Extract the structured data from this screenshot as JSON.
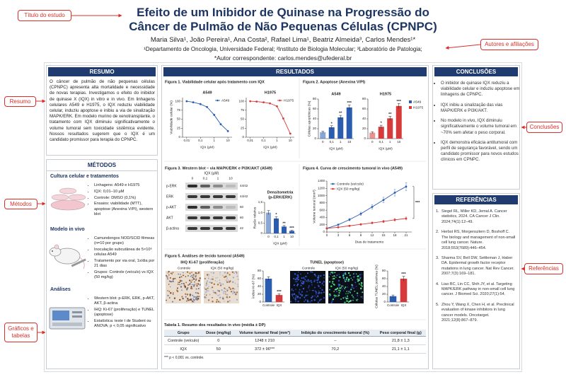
{
  "callouts": [
    "Título do estudo",
    "Resumo",
    "Métodos",
    "Gráficos e tabelas",
    "Autores e afiliações",
    "Conclusões",
    "Referências"
  ],
  "header": {
    "title_line1": "Efeito de um Inibidor de Quinase na Progressão do",
    "title_line2": "Câncer de Pulmão de Não Pequenas Células (CPNPC)",
    "authors": "Maria Silva¹, João Pereira¹, Ana Costa², Rafael Lima¹, Beatriz Almeida³, Carlos Mendes¹*",
    "affiliations": "¹Departamento de Oncologia, Universidade Federal; ²Instituto de Biologia Molecular; ³Laboratório de Patologia;",
    "corresponding": "*Autor correspondente: carlos.mendes@ufederal.br"
  },
  "resumo": {
    "heading": "RESUMO",
    "text": "O câncer de pulmão de não pequenas células (CPNPC) apresenta alta mortalidade e necessidade de novas terapias. Investigamos o efeito do inibidor de quinase X (IQX) in vitro e in vivo. Em linhagens celulares A549 e H1975, o IQX reduziu viabilidade celular, induziu apoptose e inibiu a via de sinalização MAPK/ERK. Em modelo murino de xenotransplante, o tratamento com IQX diminuiu significativamente o volume tumoral sem toxicidade sistêmica evidente. Nossos resultados sugerem que o IQX é um candidato promissor para terapia do CPNPC."
  },
  "metodos": {
    "heading": "MÉTODOS",
    "sections": [
      {
        "title": "Cultura celular e tratamentos",
        "items": [
          "Linhagens: A549 e H1975",
          "IQX: 0,01–10 µM",
          "Controle: DMSO (0,1%)",
          "Ensaios: viabilidade (MTT), apoptose (Anexina V/PI), western blot"
        ]
      },
      {
        "title": "Modelo in vivo",
        "items": [
          "Camundongos NOD/SCID fêmeas (n=10 por grupo)",
          "Inoculação subcutânea de 5×10⁶ células A549",
          "Tratamento por via oral, 1x/dia por 21 dias",
          "Grupos: Controle (veículo) vs IQX (50 mg/kg)"
        ]
      },
      {
        "title": "Análises",
        "items": [
          "Western blot: p-ERK, ERK, p-AKT, AKT, β-actina",
          "IHQ: Ki-67 (proliferação) e TUNEL (apoptose)",
          "Estatística: teste t de Student ou ANOVA; p < 0,05 significativo"
        ]
      }
    ]
  },
  "resultados": {
    "heading": "RESULTADOS",
    "fig1": {
      "title": "Figura 1. Viabilidade celular após tratamento com IQX",
      "panels": [
        {
          "type": "line",
          "title": "A549",
          "xscale": "log",
          "x": [
            0.01,
            0.03,
            0.1,
            0.3,
            1,
            3,
            10
          ],
          "xlim": [
            0.005,
            20
          ],
          "xticks": [
            {
              "value": 0.01,
              "label": "0,01"
            },
            {
              "value": 0.1,
              "label": "0,1"
            },
            1,
            10
          ],
          "xlabel": "IQX (µM)",
          "ylabel": "Viabilidade celular (%)",
          "ylim": [
            0,
            110
          ],
          "yticks": [
            0,
            25,
            50,
            75,
            100
          ],
          "legend": "upper right",
          "series": [
            {
              "name": "A549",
              "color": "#2a5db0",
              "values": [
                100,
                97,
                92,
                84,
                62,
                36,
                17
              ]
            }
          ]
        },
        {
          "type": "line",
          "title": "H1975",
          "xscale": "log",
          "x": [
            0.01,
            0.03,
            0.1,
            0.3,
            1,
            3,
            10
          ],
          "xlim": [
            0.005,
            20
          ],
          "xticks": [
            {
              "value": 0.01,
              "label": "0,01"
            },
            {
              "value": 0.1,
              "label": "0,1"
            },
            1,
            10
          ],
          "xlabel": "IQX (µM)",
          "ylim": [
            0,
            110
          ],
          "yticks": [
            0,
            25,
            50,
            75,
            100
          ],
          "legend": "upper right",
          "series": [
            {
              "name": "H1975",
              "color": "#d63a3a",
              "values": [
                100,
                99,
                97,
                94,
                86,
                52,
                10
              ]
            }
          ]
        }
      ]
    },
    "fig2": {
      "title": "Figura 2. Apoptose (Anexina V/PI)",
      "legend": [
        {
          "name": "A549",
          "color": "#2a5db0"
        },
        {
          "name": "H1975",
          "color": "#d63a3a"
        }
      ],
      "panels": [
        {
          "type": "bar",
          "title": "A549",
          "categories": [
            "0",
            "0,1",
            "1",
            "10"
          ],
          "values": [
            13,
            23,
            43,
            63
          ],
          "errors": [
            2,
            3,
            4,
            5
          ],
          "sig": [
            null,
            "*",
            "**",
            "***"
          ],
          "color": "#2a5db0",
          "xlabel": "IQX (µM)",
          "ylabel": "Células apoptóticas (%)",
          "ylim": [
            0,
            80
          ],
          "yticks": [
            0,
            20,
            40,
            60,
            80
          ]
        },
        {
          "type": "bar",
          "title": "H1975",
          "categories": [
            "0",
            "0,1",
            "1",
            "10"
          ],
          "values": [
            12,
            24,
            41,
            66
          ],
          "errors": [
            2,
            3,
            4,
            5
          ],
          "sig": [
            null,
            "*",
            "**",
            "***"
          ],
          "color": "#d63a3a",
          "xlabel": "IQX (µM)",
          "ylim": [
            0,
            80
          ],
          "yticks": [
            0,
            20,
            40,
            60,
            80
          ]
        }
      ]
    },
    "fig3": {
      "title": "Figura 3. Western blot – via MAPK/ERK e PI3K/AKT (A549)",
      "blot": {
        "header": "IQX (µM)",
        "lanes": [
          "0",
          "0,1",
          "1",
          "10"
        ],
        "rows": [
          {
            "label": "p-ERK",
            "size": "44/42"
          },
          {
            "label": "ERK",
            "size": "44/42"
          },
          {
            "label": "p-AKT",
            "size": "60"
          },
          {
            "label": "AKT",
            "size": "60"
          },
          {
            "label": "β-actina",
            "size": "42"
          }
        ]
      },
      "densitometry": {
        "type": "bar",
        "title": "Densitometria",
        "subtitle": "(p-ERK/ERK)",
        "categories": [
          "0",
          "0,1",
          "1",
          "10"
        ],
        "values": [
          1.0,
          0.72,
          0.33,
          0.12
        ],
        "errors": [
          0.1,
          0.08,
          0.05,
          0.03
        ],
        "sig": [
          null,
          "*",
          "**",
          "***"
        ],
        "color": "#2a5db0",
        "xlabel": "IQX (µM)",
        "ylabel": "Razão relativa",
        "ylim": [
          0,
          1.5
        ],
        "yticks": [
          0,
          {
            "value": 0.5,
            "label": "0,5"
          },
          {
            "value": 1.0,
            "label": "1,0"
          },
          {
            "value": 1.5,
            "label": "1,5"
          }
        ]
      }
    },
    "fig4": {
      "title": "Figura 4. Curva de crescimento tumoral in vivo (A549)",
      "chart": {
        "type": "line",
        "x": [
          0,
          3,
          6,
          9,
          12,
          15,
          18,
          21
        ],
        "xlim": [
          0,
          22.5
        ],
        "xticks": [
          0,
          3,
          6,
          9,
          12,
          15,
          18,
          21
        ],
        "xlabel": "Dias de tratamento",
        "ylabel": "Volume tumoral (mm³)",
        "ylim": [
          0,
          1400
        ],
        "yticks": [
          0,
          200,
          400,
          600,
          800,
          1000,
          1200,
          1400
        ],
        "legend": "upper left",
        "annotation": "***",
        "series": [
          {
            "name": "Controle (veículo)",
            "color": "#2a5db0",
            "values": [
              100,
              200,
              340,
              500,
              690,
              880,
              1080,
              1248
            ],
            "errors": [
              10,
              20,
              30,
              45,
              60,
              75,
              90,
              110
            ]
          },
          {
            "name": "IQX (50 mg/kg)",
            "color": "#d63a3a",
            "values": [
              100,
              130,
              170,
              210,
              250,
              290,
              335,
              372
            ],
            "errors": [
              10,
              14,
              18,
              22,
              26,
              30,
              35,
              40
            ]
          }
        ]
      }
    },
    "fig5": {
      "title": "Figura 5. Análises de tecido tumoral (A549)",
      "ki67": {
        "title": "IHQ Ki-67 (proliferação)",
        "image_labels": [
          "Controle",
          "IQX (50 mg/kg)"
        ],
        "chart": {
          "type": "bar",
          "categories": [
            "Controle",
            "IQX"
          ],
          "values": [
            60,
            18
          ],
          "errors": [
            5,
            3
          ],
          "sig": [
            null,
            "***"
          ],
          "colors": [
            "#2a5db0",
            "#d63a3a"
          ],
          "ylabel": "Índice Ki-67 (%)",
          "ylim": [
            0,
            80
          ],
          "yticks": [
            0,
            20,
            40,
            60,
            80
          ]
        }
      },
      "tunel": {
        "title": "TUNEL (apoptose)",
        "image_labels": [
          "Controle",
          "IQX (50 mg/kg)"
        ],
        "chart": {
          "type": "bar",
          "categories": [
            "Controle",
            "IQX"
          ],
          "values": [
            15,
            60
          ],
          "errors": [
            3,
            6
          ],
          "sig": [
            null,
            "***"
          ],
          "colors": [
            "#2a5db0",
            "#d63a3a"
          ],
          "ylabel": "Células TUNEL positivas (%)",
          "ylim": [
            0,
            80
          ],
          "yticks": [
            0,
            20,
            40,
            60,
            80
          ]
        }
      }
    },
    "table1": {
      "title": "Tabela 1. Resumo dos resultados in vivo (média ± DP)",
      "columns": [
        "Grupo",
        "Dose (mg/kg)",
        "Volume tumoral final (mm³)",
        "Inibição do crescimento tumoral (%)",
        "Peso corporal final (g)"
      ],
      "rows": [
        [
          "Controle (veículo)",
          "0",
          "1248 ± 210",
          "–",
          "21,8 ± 1,3"
        ],
        [
          "IQX",
          "50",
          "372 ± 96***",
          "70,2",
          "21,1 ± 1,1"
        ]
      ],
      "note": "*** p < 0,001 vs. controle."
    }
  },
  "conclusoes": {
    "heading": "CONCLUSÕES",
    "items": [
      "O inibidor de quinase IQX reduziu a viabilidade celular e induziu apoptose em linhagens de CPNPC.",
      "IQX inibiu a sinalização das vias MAPK/ERK e PI3K/AKT.",
      "No modelo in vivo, IQX diminuiu significativamente o volume tumoral em ~70% sem afetar o peso corporal.",
      "IQX demonstra eficácia antitumoral com perfil de segurança favorável, sendo um candidato promissor para novos estudos clínicos em CPNPC."
    ]
  },
  "referencias": {
    "heading": "REFERÊNCIAS",
    "items": [
      {
        "n": "1.",
        "text": "Siegel RL, Miller KD, Jemal A. Cancer statistics, 2024. CA Cancer J Clin. 2024;74(1):12–49."
      },
      {
        "n": "2.",
        "text": "Herbst RS, Morgensztern D, Boshoff C. The biology and management of non-small cell lung cancer. Nature. 2018;553(7689):446–454."
      },
      {
        "n": "3.",
        "text": "Sharma SV, Bell DW, Settleman J, Haber DA. Epidermal growth factor receptor mutations in lung cancer. Nat Rev Cancer. 2007;7(3):169–181."
      },
      {
        "n": "4.",
        "text": "Liao BC, Lin CC, Shih JY, et al. Targeting MAPK/ERK pathway in non-small cell lung cancer. J Biomed Sci. 2020;27(1):54."
      },
      {
        "n": "5.",
        "text": "Zhou Y, Wang X, Chen H, et al. Preclinical evaluation of kinase inhibitors in lung cancer models. Oncotarget. 2021;12(8):867–879."
      }
    ]
  }
}
